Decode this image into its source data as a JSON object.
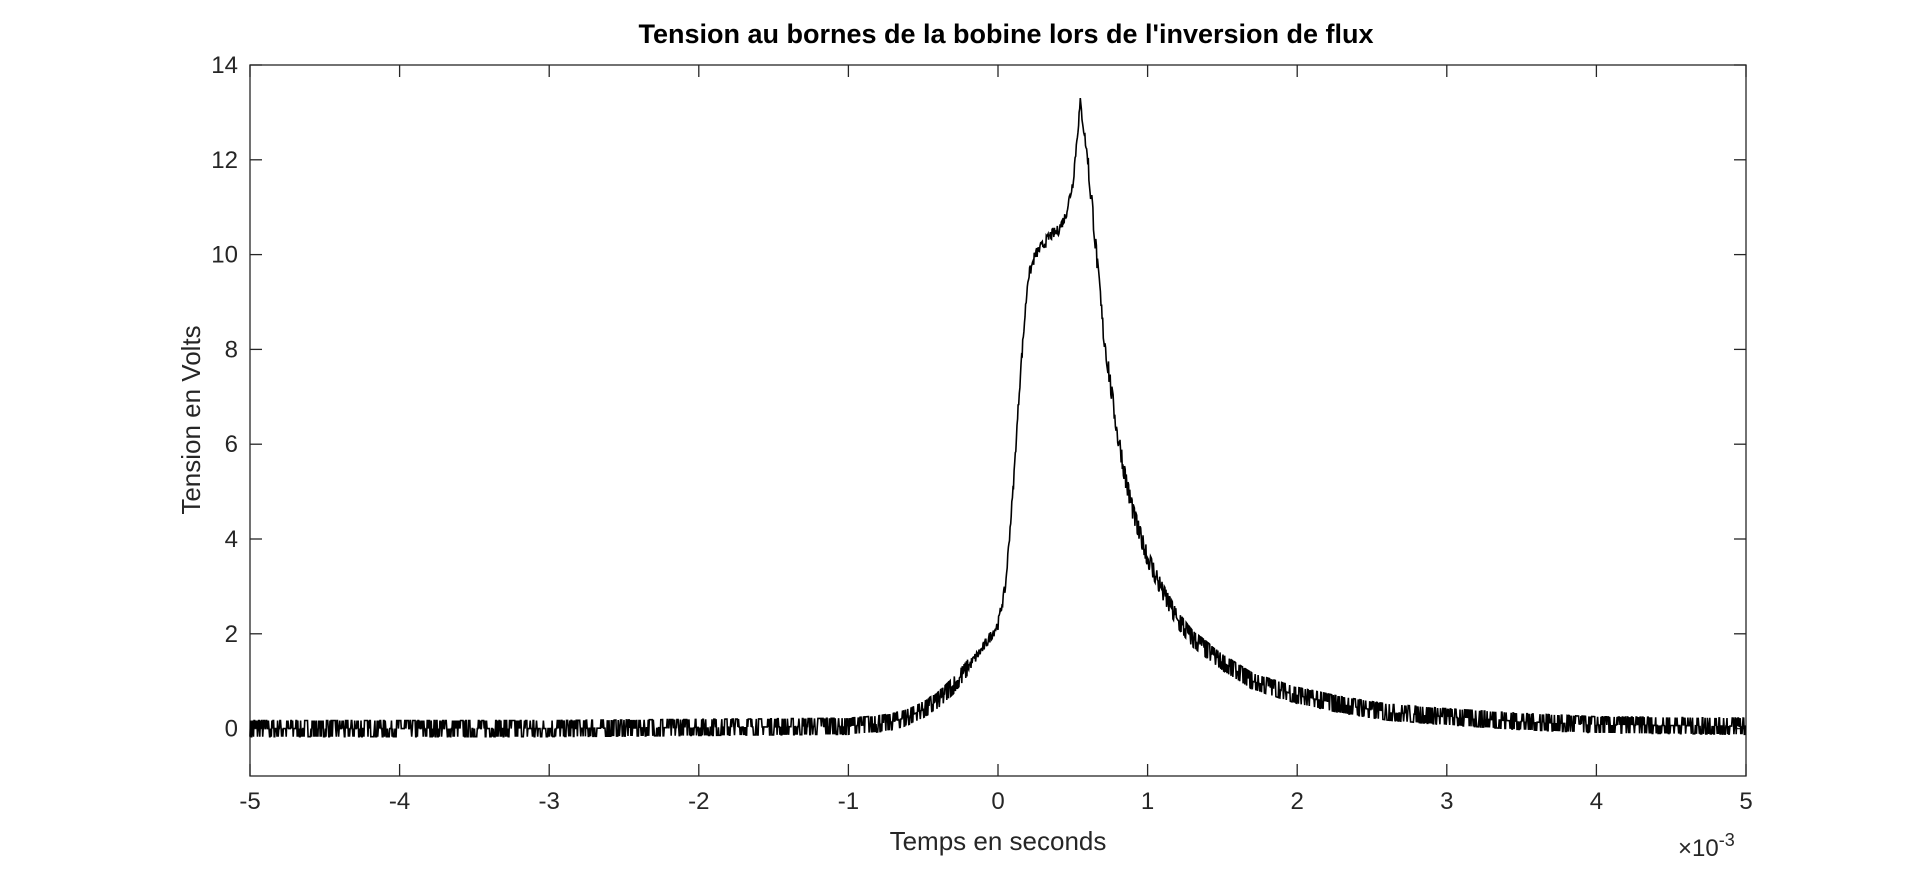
{
  "chart_data": {
    "type": "line",
    "title": "Tension au bornes de la bobine lors de l'inversion de flux",
    "xlabel": "Temps en seconds",
    "ylabel": "Tension en Volts",
    "x_exponent_prefix": "×10",
    "x_exponent_power": "-3",
    "xlim": [
      -0.005,
      0.005
    ],
    "ylim": [
      -1,
      14
    ],
    "xticks": [
      -0.005,
      -0.004,
      -0.003,
      -0.002,
      -0.001,
      0,
      0.001,
      0.002,
      0.003,
      0.004,
      0.005
    ],
    "xtick_labels": [
      "-5",
      "-4",
      "-3",
      "-2",
      "-1",
      "0",
      "1",
      "2",
      "3",
      "4",
      "5"
    ],
    "yticks": [
      0,
      2,
      4,
      6,
      8,
      10,
      12,
      14
    ],
    "ytick_labels": [
      "0",
      "2",
      "4",
      "6",
      "8",
      "10",
      "12",
      "14"
    ],
    "grid": false,
    "line_color": "#000000",
    "series": [
      {
        "x": [
          -0.005,
          -0.003,
          -0.001,
          -0.0008,
          -0.0007,
          -0.0006,
          -0.0005,
          -0.0004,
          -0.0003,
          -0.0002,
          -0.0001,
          0.0,
          5e-05,
          0.0001,
          0.00015,
          0.0002,
          0.00025,
          0.0003,
          0.00035,
          0.0004,
          0.00045,
          0.0005,
          0.00055,
          0.0006,
          0.00065,
          0.0007,
          0.00075,
          0.0008,
          0.00085,
          0.0009,
          0.00095,
          0.001,
          0.0011,
          0.0012,
          0.0013,
          0.0015,
          0.0017,
          0.002,
          0.0023,
          0.0026,
          0.003,
          0.0035,
          0.004,
          0.005
        ],
        "y": [
          0.0,
          0.0,
          0.05,
          0.1,
          0.15,
          0.25,
          0.4,
          0.6,
          0.9,
          1.3,
          1.7,
          2.2,
          3.0,
          5.0,
          7.5,
          9.5,
          10.0,
          10.2,
          10.4,
          10.5,
          10.8,
          11.5,
          13.2,
          12.0,
          10.3,
          8.5,
          7.3,
          6.2,
          5.3,
          4.6,
          4.1,
          3.6,
          2.9,
          2.3,
          1.9,
          1.4,
          1.0,
          0.7,
          0.5,
          0.35,
          0.25,
          0.15,
          0.08,
          0.05
        ]
      }
    ],
    "noise_amplitude": 0.17
  }
}
